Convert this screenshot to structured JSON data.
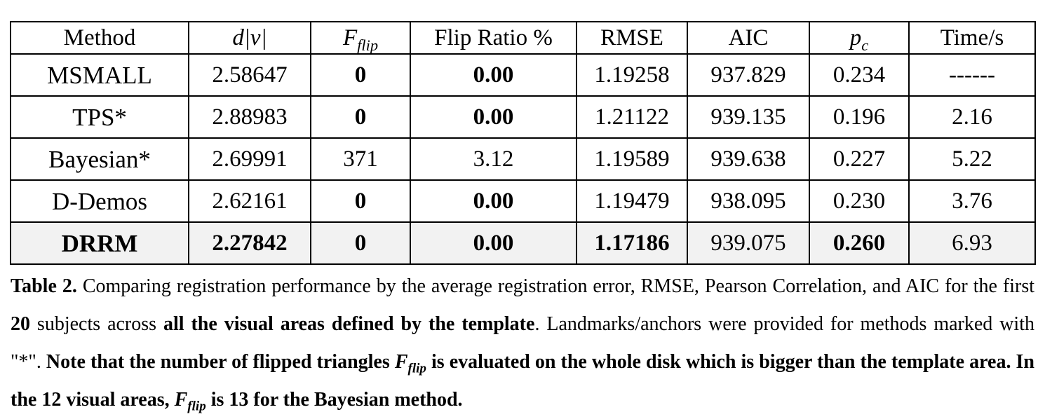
{
  "table": {
    "headers": [
      {
        "kind": "text",
        "text": "Method"
      },
      {
        "kind": "math",
        "text": "d|v|"
      },
      {
        "kind": "mathsub",
        "base": "F",
        "sub": "flip"
      },
      {
        "kind": "text",
        "text": "Flip Ratio %"
      },
      {
        "kind": "text",
        "text": "RMSE"
      },
      {
        "kind": "text",
        "text": "AIC"
      },
      {
        "kind": "mathsub",
        "base": "p",
        "sub": "c"
      },
      {
        "kind": "text",
        "text": "Time/s"
      }
    ],
    "rows": [
      {
        "highlight": false,
        "cells": [
          {
            "text": "MSMALL",
            "bold": false
          },
          {
            "text": "2.58647",
            "bold": false
          },
          {
            "text": "0",
            "bold": true
          },
          {
            "text": "0.00",
            "bold": true
          },
          {
            "text": "1.19258",
            "bold": false
          },
          {
            "text": "937.829",
            "bold": false
          },
          {
            "text": "0.234",
            "bold": false
          },
          {
            "text": "------",
            "bold": false
          }
        ]
      },
      {
        "highlight": false,
        "cells": [
          {
            "text": "TPS*",
            "bold": false
          },
          {
            "text": "2.88983",
            "bold": false
          },
          {
            "text": "0",
            "bold": true
          },
          {
            "text": "0.00",
            "bold": true
          },
          {
            "text": "1.21122",
            "bold": false
          },
          {
            "text": "939.135",
            "bold": false
          },
          {
            "text": "0.196",
            "bold": false
          },
          {
            "text": "2.16",
            "bold": false
          }
        ]
      },
      {
        "highlight": false,
        "cells": [
          {
            "text": "Bayesian*",
            "bold": false
          },
          {
            "text": "2.69991",
            "bold": false
          },
          {
            "text": "371",
            "bold": false
          },
          {
            "text": "3.12",
            "bold": false
          },
          {
            "text": "1.19589",
            "bold": false
          },
          {
            "text": "939.638",
            "bold": false
          },
          {
            "text": "0.227",
            "bold": false
          },
          {
            "text": "5.22",
            "bold": false
          }
        ]
      },
      {
        "highlight": false,
        "cells": [
          {
            "text": "D-Demos",
            "bold": false
          },
          {
            "text": "2.62161",
            "bold": false
          },
          {
            "text": "0",
            "bold": true
          },
          {
            "text": "0.00",
            "bold": true
          },
          {
            "text": "1.19479",
            "bold": false
          },
          {
            "text": "938.095",
            "bold": false
          },
          {
            "text": "0.230",
            "bold": false
          },
          {
            "text": "3.76",
            "bold": false
          }
        ]
      },
      {
        "highlight": true,
        "cells": [
          {
            "text": "DRRM",
            "bold": true
          },
          {
            "text": "2.27842",
            "bold": true
          },
          {
            "text": "0",
            "bold": true
          },
          {
            "text": "0.00",
            "bold": true
          },
          {
            "text": "1.17186",
            "bold": true
          },
          {
            "text": "939.075",
            "bold": false
          },
          {
            "text": "0.260",
            "bold": true
          },
          {
            "text": "6.93",
            "bold": false
          }
        ]
      }
    ]
  },
  "caption": {
    "label": "Table 2.",
    "t1": " Comparing registration performance by the average registration error, RMSE, Pearson Correlation, and AIC for the first ",
    "b1": "20",
    "t2": " subjects across ",
    "b2": "all the visual areas defined by the template",
    "t3": ". Landmarks/anchors were provided for methods marked with \"*\".  ",
    "b3": "Note that the number of flipped triangles ",
    "f1_base": "F",
    "f1_sub": "flip",
    "b4": " is evaluated on the whole disk which is bigger than the template area. In the 12 visual areas, ",
    "f2_base": "F",
    "f2_sub": "flip",
    "b5": " is 13 for the Bayesian method."
  }
}
